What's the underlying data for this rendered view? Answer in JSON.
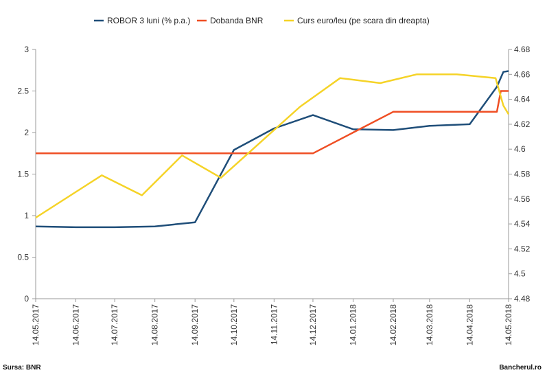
{
  "chart_data": {
    "type": "line",
    "x": [
      "14.05.2017",
      "14.06.2017",
      "14.07.2017",
      "14.08.2017",
      "14.09.2017",
      "14.10.2017",
      "14.11.2017",
      "14.12.2017",
      "14.01.2018",
      "14.02.2018",
      "14.03.2018",
      "14.04.2018",
      "14.05.2018"
    ],
    "ylim_left": [
      0,
      3
    ],
    "yticks_left": [
      "0",
      "0.5",
      "1",
      "1.5",
      "2",
      "2.5",
      "3"
    ],
    "ylim_right": [
      4.48,
      4.68
    ],
    "yticks_right": [
      "4.48",
      "4.5",
      "4.52",
      "4.54",
      "4.56",
      "4.58",
      "4.6",
      "4.62",
      "4.64",
      "4.66",
      "4.68"
    ],
    "grid": false,
    "legend_position": "top",
    "series": [
      {
        "name": "ROBOR 3 luni (% p.a.)",
        "axis": "left",
        "color": "#1f4e79",
        "points": [
          [
            "2017-05-14",
            0.87
          ],
          [
            "2017-06-14",
            0.86
          ],
          [
            "2017-07-14",
            0.86
          ],
          [
            "2017-08-14",
            0.87
          ],
          [
            "2017-09-14",
            0.92
          ],
          [
            "2017-10-14",
            1.79
          ],
          [
            "2017-11-14",
            2.05
          ],
          [
            "2017-12-14",
            2.21
          ],
          [
            "2018-01-14",
            2.04
          ],
          [
            "2018-02-14",
            2.03
          ],
          [
            "2018-03-14",
            2.08
          ],
          [
            "2018-04-14",
            2.1
          ],
          [
            "2018-05-05",
            2.55
          ],
          [
            "2018-05-10",
            2.73
          ],
          [
            "2018-05-14",
            2.74
          ]
        ]
      },
      {
        "name": "Dobanda BNR",
        "axis": "left",
        "color": "#ef4e23",
        "points": [
          [
            "2017-05-14",
            1.75
          ],
          [
            "2017-12-14",
            1.75
          ],
          [
            "2018-01-14",
            2.0
          ],
          [
            "2018-02-14",
            2.25
          ],
          [
            "2018-05-05",
            2.25
          ],
          [
            "2018-05-08",
            2.5
          ],
          [
            "2018-05-14",
            2.5
          ]
        ]
      },
      {
        "name": "Curs euro/leu (pe scara din dreapta)",
        "axis": "right",
        "color": "#f5d327",
        "points": [
          [
            "2017-05-14",
            4.545
          ],
          [
            "2017-07-04",
            4.579
          ],
          [
            "2017-08-04",
            4.563
          ],
          [
            "2017-09-04",
            4.595
          ],
          [
            "2017-10-04",
            4.577
          ],
          [
            "2017-12-04",
            4.634
          ],
          [
            "2018-01-04",
            4.657
          ],
          [
            "2018-02-04",
            4.653
          ],
          [
            "2018-03-04",
            4.66
          ],
          [
            "2018-04-04",
            4.66
          ],
          [
            "2018-05-04",
            4.657
          ],
          [
            "2018-05-10",
            4.635
          ],
          [
            "2018-05-14",
            4.628
          ]
        ]
      }
    ]
  },
  "footer": {
    "source": "Sursa: BNR",
    "brand": "Bancherul.ro"
  }
}
